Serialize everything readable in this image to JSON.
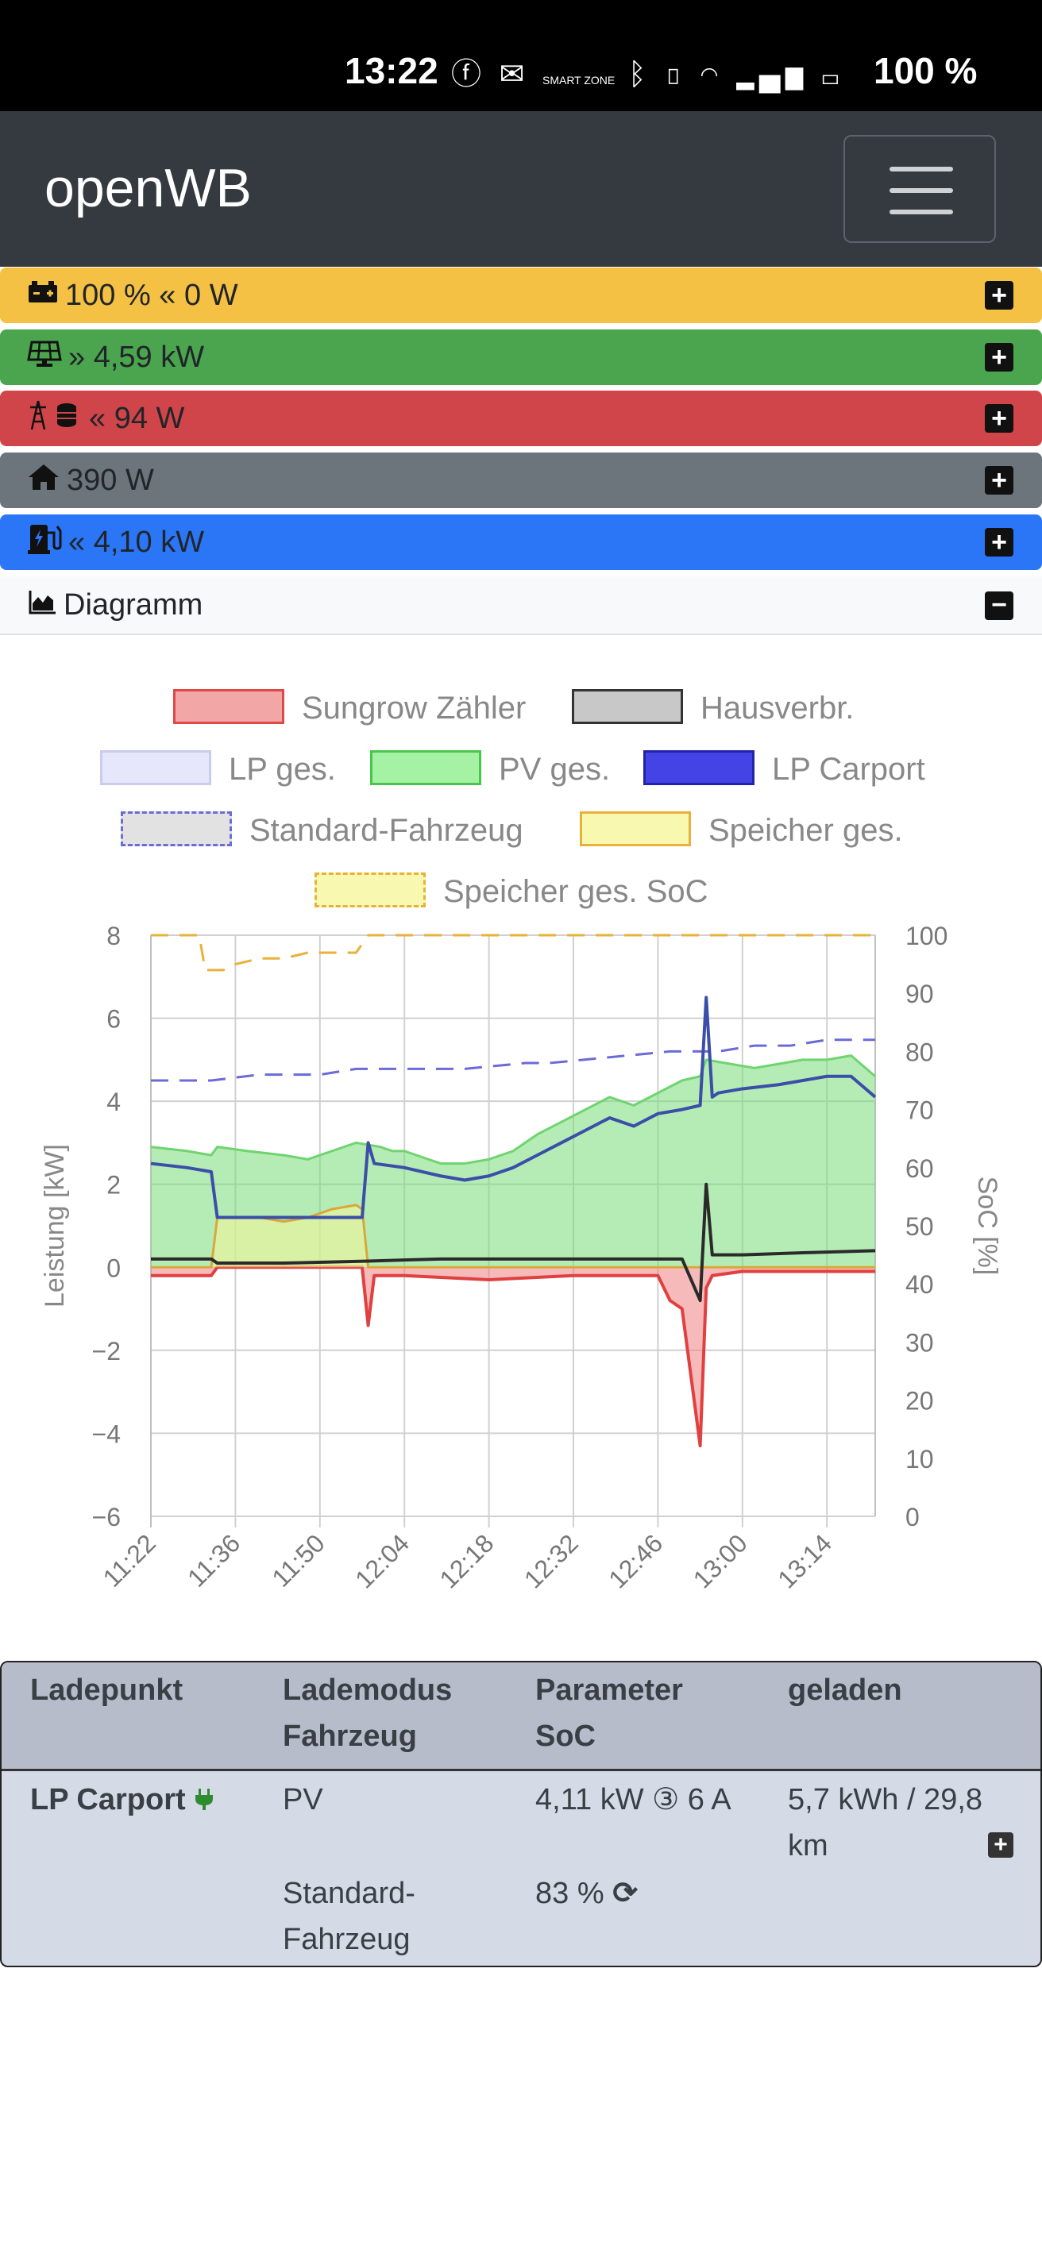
{
  "status_bar": {
    "time": "13:22",
    "icons": [
      "facebook-icon",
      "mail-icon",
      "smart-zone-icon",
      "bluetooth-icon",
      "vibrate-icon",
      "wifi-6-icon",
      "signal-icon",
      "battery-charging-icon"
    ],
    "smart_zone_label": "SMART ZONE",
    "battery": "100 %"
  },
  "navbar": {
    "brand": "openWB"
  },
  "bars": {
    "battery": {
      "text": "100 % « 0 W",
      "icon": "car-battery-icon",
      "color": "#f4c144"
    },
    "pv": {
      "text": "» 4,59 kW",
      "icon": "solar-panel-icon",
      "color": "#4aa54e"
    },
    "grid": {
      "text": "« 94 W",
      "icon": "power-grid-coins-icon",
      "color": "#cf4549"
    },
    "house": {
      "text": "390 W",
      "icon": "home-icon",
      "color": "#6c747c"
    },
    "lp": {
      "text": "« 4,10 kW",
      "icon": "charging-station-icon",
      "color": "#2b76f6"
    },
    "diagramm": {
      "text": "Diagramm",
      "icon": "area-chart-icon"
    }
  },
  "legend": [
    {
      "label": "Sungrow Zähler",
      "color": "#e05a5a"
    },
    {
      "label": "Hausverbr.",
      "color": "#444444"
    },
    {
      "label": "LP ges.",
      "color": "#c9cbef"
    },
    {
      "label": "PV ges.",
      "color": "#49c64b"
    },
    {
      "label": "LP Carport",
      "color": "#3332cc"
    },
    {
      "label": "Standard-Fahrzeug",
      "color": "#6a6ad8"
    },
    {
      "label": "Speicher ges.",
      "color": "#e8b13a"
    },
    {
      "label": "Speicher ges. SoC",
      "color": "#e8b13a"
    }
  ],
  "chart_data": {
    "type": "line",
    "x_tick_labels": [
      "11:22",
      "11:36",
      "11:50",
      "12:04",
      "12:18",
      "12:32",
      "12:46",
      "13:00",
      "13:14"
    ],
    "x_range": [
      "11:22",
      "13:22"
    ],
    "ylabel": "Leistung [kW]",
    "y2label": "SoC [%]",
    "ylim": [
      -6,
      8
    ],
    "y_ticks": [
      -6,
      -4,
      -2,
      0,
      2,
      4,
      6,
      8
    ],
    "y2lim": [
      0,
      100
    ],
    "y2_ticks": [
      0,
      10,
      20,
      30,
      40,
      50,
      60,
      70,
      80,
      90,
      100
    ],
    "grid": true,
    "legend_position": "top",
    "series": [
      {
        "name": "PV ges.",
        "axis": "left",
        "fill": true,
        "x": [
          "11:22",
          "11:28",
          "11:32",
          "11:33",
          "11:38",
          "11:44",
          "11:48",
          "11:52",
          "11:56",
          "12:00",
          "12:02",
          "12:04",
          "12:10",
          "12:14",
          "12:18",
          "12:22",
          "12:26",
          "12:30",
          "12:34",
          "12:38",
          "12:42",
          "12:46",
          "12:50",
          "12:53",
          "12:54",
          "12:58",
          "13:02",
          "13:06",
          "13:10",
          "13:14",
          "13:18",
          "13:22"
        ],
        "values": [
          2.9,
          2.8,
          2.7,
          2.9,
          2.8,
          2.7,
          2.6,
          2.8,
          3.0,
          2.9,
          2.8,
          2.8,
          2.5,
          2.5,
          2.6,
          2.8,
          3.2,
          3.5,
          3.8,
          4.1,
          3.9,
          4.2,
          4.5,
          4.6,
          5.0,
          4.9,
          4.8,
          4.9,
          5.0,
          5.0,
          5.1,
          4.6
        ]
      },
      {
        "name": "LP Carport",
        "axis": "left",
        "x": [
          "11:22",
          "11:28",
          "11:32",
          "11:33",
          "11:44",
          "11:52",
          "11:57",
          "11:58",
          "11:59",
          "12:04",
          "12:10",
          "12:14",
          "12:18",
          "12:22",
          "12:26",
          "12:30",
          "12:34",
          "12:38",
          "12:42",
          "12:46",
          "12:50",
          "12:53",
          "12:54",
          "12:55",
          "12:56",
          "13:00",
          "13:06",
          "13:10",
          "13:14",
          "13:18",
          "13:22"
        ],
        "values": [
          2.5,
          2.4,
          2.3,
          1.2,
          1.2,
          1.2,
          1.2,
          3.0,
          2.5,
          2.4,
          2.2,
          2.1,
          2.2,
          2.4,
          2.7,
          3.0,
          3.3,
          3.6,
          3.4,
          3.7,
          3.8,
          3.9,
          6.5,
          4.1,
          4.2,
          4.3,
          4.4,
          4.5,
          4.6,
          4.6,
          4.1
        ]
      },
      {
        "name": "Hausverbr.",
        "axis": "left",
        "x": [
          "11:22",
          "11:32",
          "11:33",
          "11:44",
          "11:58",
          "12:10",
          "12:30",
          "12:50",
          "12:53",
          "12:54",
          "12:55",
          "13:00",
          "13:10",
          "13:22"
        ],
        "values": [
          0.2,
          0.2,
          0.1,
          0.1,
          0.15,
          0.2,
          0.2,
          0.2,
          -0.8,
          2.0,
          0.3,
          0.3,
          0.35,
          0.4
        ]
      },
      {
        "name": "Sungrow Zähler",
        "axis": "left",
        "fill": true,
        "x": [
          "11:22",
          "11:32",
          "11:33",
          "11:44",
          "11:57",
          "11:58",
          "11:59",
          "12:04",
          "12:18",
          "12:32",
          "12:46",
          "12:48",
          "12:50",
          "12:53",
          "12:54",
          "12:55",
          "13:00",
          "13:10",
          "13:22"
        ],
        "values": [
          -0.2,
          -0.2,
          0.0,
          0.0,
          0.0,
          -1.4,
          -0.2,
          -0.2,
          -0.3,
          -0.2,
          -0.2,
          -0.8,
          -1.0,
          -4.3,
          -0.5,
          -0.2,
          -0.1,
          -0.1,
          -0.1
        ]
      },
      {
        "name": "Speicher ges.",
        "axis": "left",
        "fill": true,
        "x": [
          "11:22",
          "11:32",
          "11:33",
          "11:40",
          "11:44",
          "11:48",
          "11:52",
          "11:56",
          "11:57",
          "11:58",
          "13:22"
        ],
        "values": [
          0.0,
          0.0,
          1.2,
          1.2,
          1.1,
          1.2,
          1.4,
          1.5,
          1.4,
          0.0,
          0.0
        ]
      },
      {
        "name": "Standard-Fahrzeug",
        "axis": "right",
        "dashed": true,
        "x": [
          "11:22",
          "11:32",
          "11:40",
          "11:50",
          "11:56",
          "12:04",
          "12:14",
          "12:24",
          "12:28",
          "12:38",
          "12:48",
          "12:56",
          "13:02",
          "13:08",
          "13:14",
          "13:22"
        ],
        "values": [
          75,
          75,
          76,
          76,
          77,
          77,
          77,
          78,
          78,
          79,
          80,
          80,
          81,
          81,
          82,
          82
        ]
      },
      {
        "name": "Speicher ges. SoC",
        "axis": "right",
        "dashed": true,
        "x": [
          "11:22",
          "11:30",
          "11:31",
          "11:34",
          "11:36",
          "11:40",
          "11:44",
          "11:48",
          "11:54",
          "11:56",
          "11:58",
          "13:22"
        ],
        "values": [
          100,
          100,
          94,
          94,
          95,
          96,
          96,
          97,
          97,
          97,
          100,
          100
        ]
      }
    ]
  },
  "table": {
    "headers": {
      "col1": "Ladepunkt",
      "col2_line1": "Lademodus",
      "col2_line2": "Fahrzeug",
      "col3_line1": "Parameter",
      "col3_line2": "SoC",
      "col4": "geladen"
    },
    "row": {
      "ladepunkt": "LP Carport",
      "lademodus": "PV",
      "parameter": "4,11 kW ③ 6 A",
      "geladen_line1": "5,7 kWh / 29,8",
      "geladen_line2": "km",
      "fahrzeug_line1": "Standard-",
      "fahrzeug_line2": "Fahrzeug",
      "soc": "83 %"
    }
  }
}
